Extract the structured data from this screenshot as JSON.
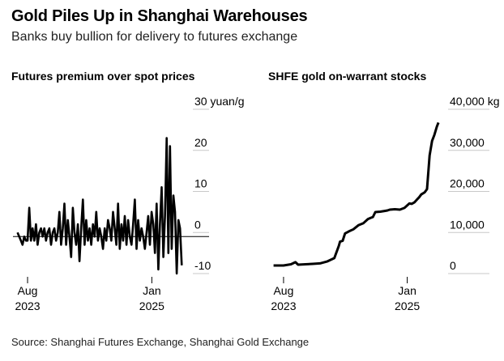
{
  "header": {
    "title": "Gold Piles Up in Shanghai Warehouses",
    "subtitle": "Banks buy bullion for delivery to futures exchange"
  },
  "footer": {
    "source": "Source: Shanghai Futures Exchange, Shanghai Gold Exchange"
  },
  "chart_data": [
    {
      "type": "line",
      "title": "Futures premium over spot prices",
      "unit": "yuan/g",
      "ylim": [
        -10,
        30
      ],
      "yticks": [
        -10,
        0,
        10,
        20,
        30
      ],
      "ytick_labels": [
        "-10",
        "0",
        "10",
        "20",
        "30 yuan/g"
      ],
      "xticks": [
        {
          "x": "2023-08-01",
          "label": "Aug\n2023"
        },
        {
          "x": "2025-01-01",
          "label": "Jan\n2025"
        }
      ],
      "xlim": [
        "2023-06-01",
        "2025-06-01"
      ],
      "zero_line": true,
      "series": [
        {
          "x": [
            "2023-06-20",
            "2023-06-27",
            "2023-07-04",
            "2023-07-11",
            "2023-07-18",
            "2023-07-25",
            "2023-08-01",
            "2023-08-08",
            "2023-08-15",
            "2023-08-22",
            "2023-08-29",
            "2023-09-05",
            "2023-09-12",
            "2023-09-19",
            "2023-09-26",
            "2023-10-03",
            "2023-10-10",
            "2023-10-17",
            "2023-10-24",
            "2023-10-31",
            "2023-11-07",
            "2023-11-14",
            "2023-11-21",
            "2023-11-28",
            "2023-12-05",
            "2023-12-12",
            "2023-12-19",
            "2023-12-26",
            "2024-01-02",
            "2024-01-09",
            "2024-01-16",
            "2024-01-23",
            "2024-01-30",
            "2024-02-06",
            "2024-02-13",
            "2024-02-20",
            "2024-02-27",
            "2024-03-05",
            "2024-03-12",
            "2024-03-19",
            "2024-03-26",
            "2024-04-02",
            "2024-04-09",
            "2024-04-16",
            "2024-04-23",
            "2024-04-30",
            "2024-05-07",
            "2024-05-14",
            "2024-05-21",
            "2024-05-28",
            "2024-06-04",
            "2024-06-11",
            "2024-06-18",
            "2024-06-25",
            "2024-07-02",
            "2024-07-09",
            "2024-07-16",
            "2024-07-23",
            "2024-07-30",
            "2024-08-06",
            "2024-08-13",
            "2024-08-20",
            "2024-08-27",
            "2024-09-03",
            "2024-09-10",
            "2024-09-17",
            "2024-09-24",
            "2024-10-01",
            "2024-10-08",
            "2024-10-15",
            "2024-10-22",
            "2024-10-29",
            "2024-11-05",
            "2024-11-12",
            "2024-11-19",
            "2024-11-26",
            "2024-12-03",
            "2024-12-10",
            "2024-12-17",
            "2024-12-24",
            "2024-12-31",
            "2025-01-07",
            "2025-01-14",
            "2025-01-21",
            "2025-01-28",
            "2025-02-04",
            "2025-02-11",
            "2025-02-18",
            "2025-02-25",
            "2025-03-04",
            "2025-03-11",
            "2025-03-18",
            "2025-03-25",
            "2025-04-01",
            "2025-04-08",
            "2025-04-15",
            "2025-04-22",
            "2025-04-29",
            "2025-05-06"
          ],
          "y": [
            1,
            0,
            -1,
            -2,
            0,
            -1,
            -1,
            7,
            -1,
            2,
            -1,
            3,
            -2,
            1,
            2,
            0,
            2,
            -1,
            1,
            2,
            -2,
            1,
            2,
            -1,
            1,
            6,
            -2,
            2,
            8,
            -2,
            4,
            0,
            -5,
            7,
            1,
            -2,
            3,
            -6,
            2,
            9,
            -2,
            4,
            -1,
            2,
            -2,
            3,
            0,
            6,
            -1,
            2,
            0,
            -3,
            2,
            -1,
            4,
            2,
            -1,
            6,
            2,
            -2,
            8,
            -3,
            3,
            -1,
            5,
            -2,
            4,
            0,
            -2,
            3,
            9,
            -3,
            4,
            -1,
            2,
            0,
            -3,
            1,
            5,
            -2,
            6,
            3,
            -4,
            8,
            -8,
            3,
            12,
            -5,
            5,
            24,
            -4,
            22,
            -3,
            10,
            6,
            -9,
            4,
            2,
            -7
          ]
        }
      ]
    },
    {
      "type": "line",
      "title": "SHFE gold on-warrant stocks",
      "unit": "kg",
      "ylim": [
        0,
        40000
      ],
      "yticks": [
        0,
        10000,
        20000,
        30000,
        40000
      ],
      "ytick_labels": [
        "0",
        "10,000",
        "20,000",
        "30,000",
        "40,000 kg"
      ],
      "xticks": [
        {
          "x": "2023-08-01",
          "label": "Aug\n2023"
        },
        {
          "x": "2025-01-01",
          "label": "Jan\n2025"
        }
      ],
      "xlim": [
        "2023-06-01",
        "2025-06-01"
      ],
      "zero_line": false,
      "series": [
        {
          "x": [
            "2023-06-20",
            "2023-08-01",
            "2023-09-01",
            "2023-09-20",
            "2023-10-01",
            "2023-11-01",
            "2023-12-01",
            "2024-01-01",
            "2024-02-01",
            "2024-03-01",
            "2024-03-20",
            "2024-03-25",
            "2024-04-05",
            "2024-04-15",
            "2024-05-01",
            "2024-05-20",
            "2024-06-10",
            "2024-07-01",
            "2024-07-20",
            "2024-08-01",
            "2024-08-10",
            "2024-08-20",
            "2024-09-10",
            "2024-10-01",
            "2024-10-10",
            "2024-10-20",
            "2024-11-10",
            "2024-12-01",
            "2024-12-20",
            "2025-01-10",
            "2025-01-20",
            "2025-02-01",
            "2025-02-10",
            "2025-02-20",
            "2025-03-01",
            "2025-03-15",
            "2025-03-25",
            "2025-04-05",
            "2025-04-15",
            "2025-04-25",
            "2025-05-05",
            "2025-05-12"
          ],
          "y": [
            200,
            200,
            500,
            1000,
            400,
            500,
            600,
            700,
            1200,
            2000,
            5000,
            6000,
            6200,
            8000,
            8500,
            9000,
            10000,
            10500,
            11500,
            11800,
            12000,
            13200,
            13300,
            13500,
            13600,
            13800,
            13900,
            13800,
            14200,
            15300,
            15200,
            15600,
            16200,
            16800,
            17500,
            18000,
            18800,
            27000,
            30500,
            32000,
            34000,
            35000
          ]
        }
      ]
    }
  ]
}
